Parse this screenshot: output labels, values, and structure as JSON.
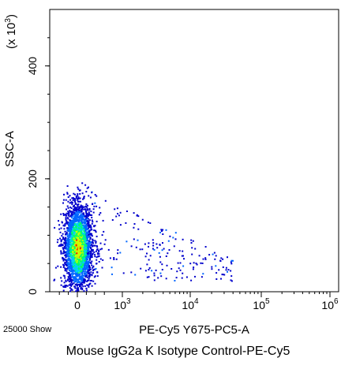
{
  "chart_data": {
    "type": "scatter",
    "title": "",
    "caption": "Mouse IgG2a K Isotype Control-PE-Cy5",
    "event_count_label": "25000 Show",
    "xlabel": "PE-Cy5 Y675-PC5-A",
    "ylabel": "SSC-A",
    "ylabel_multiplier": "(x 10",
    "ylabel_multiplier_exp": "3",
    "ylabel_multiplier_close": ")",
    "x_scale": "biexponential",
    "y_scale": "linear",
    "ylim": [
      0,
      500
    ],
    "y_ticks": [
      {
        "value": 0,
        "label": "0"
      },
      {
        "value": 200,
        "label": "200"
      },
      {
        "value": 400,
        "label": "400"
      }
    ],
    "x_ticks": [
      {
        "value": 0,
        "label": "0",
        "exp": ""
      },
      {
        "value": 1000,
        "label": "10",
        "exp": "3"
      },
      {
        "value": 10000,
        "label": "10",
        "exp": "4"
      },
      {
        "value": 100000,
        "label": "10",
        "exp": "5"
      },
      {
        "value": 1000000,
        "label": "10",
        "exp": "6"
      }
    ],
    "density_colormap": [
      "#0000cc",
      "#0066ff",
      "#00ccff",
      "#00ff66",
      "#ccff00",
      "#ff0000"
    ],
    "population": {
      "x_center": 0,
      "y_center": 80,
      "y_range": [
        0,
        195
      ],
      "scatter_x_max": 40000
    },
    "grid": false,
    "legend": "none"
  }
}
